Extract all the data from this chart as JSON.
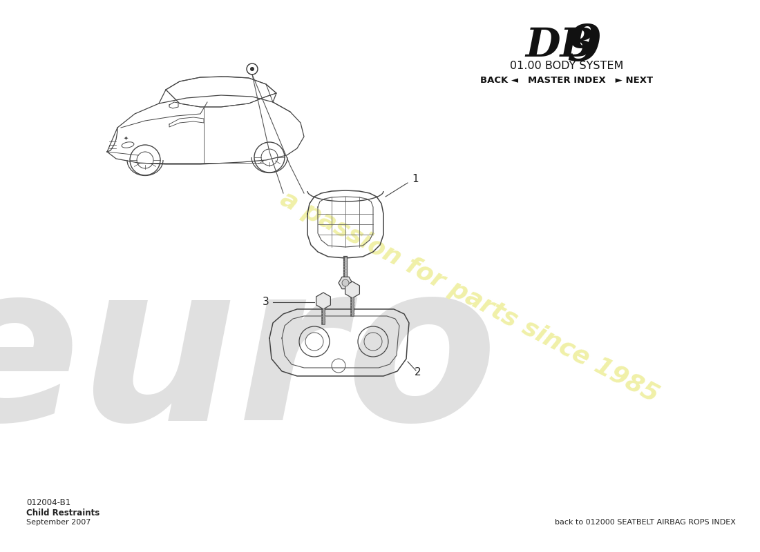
{
  "bg_color": "#ffffff",
  "title_db9_text": "DB",
  "title_db9_num": "9",
  "title_system": "01.00 BODY SYSTEM",
  "nav_text": "BACK ◄   MASTER INDEX   ► NEXT",
  "doc_number": "012004-B1",
  "doc_title": "Child Restraints",
  "doc_date": "September 2007",
  "bottom_link": "back to 012000 SEATBELT AIRBAG ROPS INDEX",
  "watermark_euro": "euro",
  "watermark_passion": "a passion for parts since 1985",
  "line_color": "#555555",
  "part_color": "#888888",
  "part_edge": "#444444"
}
